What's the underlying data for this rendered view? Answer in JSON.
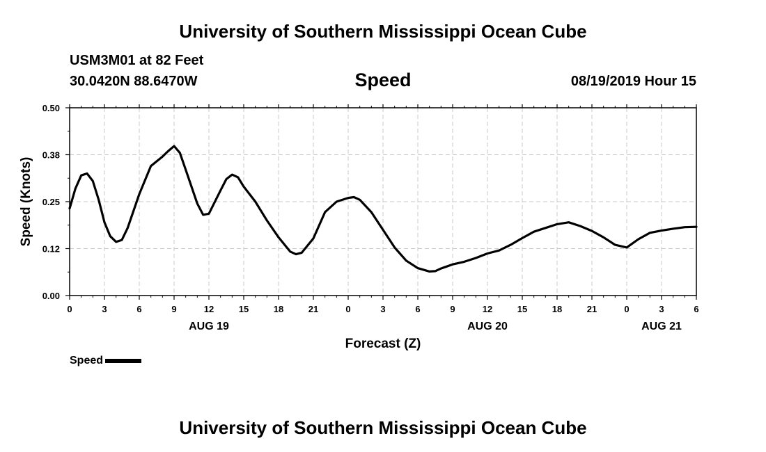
{
  "header": {
    "title": "University of Southern Mississippi Ocean Cube",
    "station": "USM3M01 at 82 Feet",
    "coords": "30.0420N 88.6470W",
    "timestamp": "08/19/2019 Hour 15"
  },
  "footer": {
    "title": "University of Southern Mississippi Ocean Cube"
  },
  "chart_data": {
    "type": "line",
    "title": "Speed",
    "xlabel": "Forecast (Z)",
    "ylabel": "Speed (Knots)",
    "ylim": [
      0,
      0.5
    ],
    "xlim": [
      0,
      54
    ],
    "grid": true,
    "y_ticks": [
      "0.00",
      "0.12",
      "0.25",
      "0.38",
      "0.50"
    ],
    "x_tick_labels": [
      "0",
      "3",
      "6",
      "9",
      "12",
      "15",
      "18",
      "21",
      "0",
      "3",
      "6",
      "9",
      "12",
      "15",
      "18",
      "21",
      "0",
      "3",
      "6"
    ],
    "date_labels": [
      {
        "label": "AUG 19",
        "hour": 12
      },
      {
        "label": "AUG 20",
        "hour": 36
      },
      {
        "label": "AUG 21",
        "hour": 51
      }
    ],
    "legend": {
      "label": "Speed",
      "position": "bottom-left"
    },
    "series": [
      {
        "name": "Speed",
        "color": "#000000",
        "x": [
          0,
          0.5,
          1,
          1.5,
          2,
          2.5,
          3,
          3.5,
          4,
          4.5,
          5,
          6,
          7,
          8,
          8.5,
          9,
          9.5,
          10,
          11,
          11.5,
          12,
          13,
          13.5,
          14,
          14.5,
          15,
          16,
          17,
          18,
          19,
          19.5,
          20,
          21,
          22,
          23,
          24,
          24.5,
          25,
          26,
          27,
          28,
          29,
          30,
          31,
          31.5,
          32,
          33,
          34,
          35,
          36,
          37,
          38,
          39,
          40,
          41,
          42,
          43,
          44,
          45,
          46,
          47,
          48,
          49,
          50,
          51,
          52,
          53,
          54
        ],
        "y": [
          0.232,
          0.285,
          0.32,
          0.325,
          0.305,
          0.255,
          0.195,
          0.158,
          0.143,
          0.148,
          0.18,
          0.27,
          0.345,
          0.37,
          0.385,
          0.398,
          0.38,
          0.335,
          0.245,
          0.215,
          0.218,
          0.28,
          0.31,
          0.322,
          0.315,
          0.29,
          0.25,
          0.2,
          0.155,
          0.117,
          0.11,
          0.114,
          0.152,
          0.222,
          0.25,
          0.26,
          0.262,
          0.255,
          0.222,
          0.175,
          0.128,
          0.093,
          0.073,
          0.064,
          0.065,
          0.072,
          0.083,
          0.09,
          0.1,
          0.112,
          0.12,
          0.135,
          0.153,
          0.17,
          0.18,
          0.19,
          0.195,
          0.185,
          0.172,
          0.155,
          0.135,
          0.128,
          0.15,
          0.167,
          0.173,
          0.178,
          0.182,
          0.183
        ]
      }
    ]
  }
}
